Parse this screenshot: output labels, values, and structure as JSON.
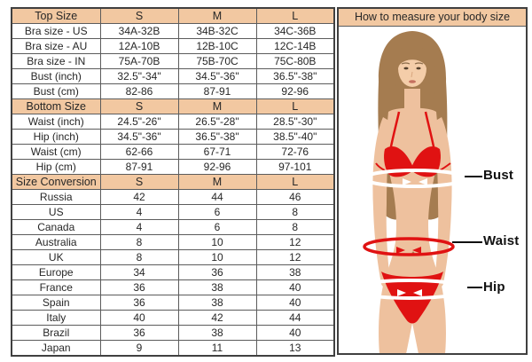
{
  "colors": {
    "header_bg": "#f2c8a1",
    "border": "#5c5c5c",
    "border_dark": "#404040",
    "text": "#272727",
    "bikini_red": "#e01212",
    "skin": "#eec19e",
    "skin_light": "#f4cda9",
    "hair": "#a57c50"
  },
  "size_table": {
    "sections": [
      {
        "header": {
          "label": "Top Size",
          "cols": [
            "S",
            "M",
            "L"
          ]
        },
        "rows": [
          {
            "label": "Bra size - US",
            "values": [
              "34A-32B",
              "34B-32C",
              "34C-36B"
            ]
          },
          {
            "label": "Bra size - AU",
            "values": [
              "12A-10B",
              "12B-10C",
              "12C-14B"
            ]
          },
          {
            "label": "Bra size - IN",
            "values": [
              "75A-70B",
              "75B-70C",
              "75C-80B"
            ]
          },
          {
            "label": "Bust (inch)",
            "values": [
              "32.5\"-34\"",
              "34.5\"-36\"",
              "36.5\"-38\""
            ]
          },
          {
            "label": "Bust (cm)",
            "values": [
              "82-86",
              "87-91",
              "92-96"
            ]
          }
        ]
      },
      {
        "header": {
          "label": "Bottom Size",
          "cols": [
            "S",
            "M",
            "L"
          ]
        },
        "rows": [
          {
            "label": "Waist (inch)",
            "values": [
              "24.5\"-26\"",
              "26.5\"-28\"",
              "28.5\"-30\""
            ]
          },
          {
            "label": "Hip (inch)",
            "values": [
              "34.5\"-36\"",
              "36.5\"-38\"",
              "38.5\"-40\""
            ]
          },
          {
            "label": "Waist (cm)",
            "values": [
              "62-66",
              "67-71",
              "72-76"
            ]
          },
          {
            "label": "Hip (cm)",
            "values": [
              "87-91",
              "92-96",
              "97-101"
            ]
          }
        ]
      },
      {
        "header": {
          "label": "Size Conversion",
          "cols": [
            "S",
            "M",
            "L"
          ]
        },
        "rows": [
          {
            "label": "Russia",
            "values": [
              "42",
              "44",
              "46"
            ]
          },
          {
            "label": "US",
            "values": [
              "4",
              "6",
              "8"
            ]
          },
          {
            "label": "Canada",
            "values": [
              "4",
              "6",
              "8"
            ]
          },
          {
            "label": "Australia",
            "values": [
              "8",
              "10",
              "12"
            ]
          },
          {
            "label": "UK",
            "values": [
              "8",
              "10",
              "12"
            ]
          },
          {
            "label": "Europe",
            "values": [
              "34",
              "36",
              "38"
            ]
          },
          {
            "label": "France",
            "values": [
              "36",
              "38",
              "40"
            ]
          },
          {
            "label": "Spain",
            "values": [
              "36",
              "38",
              "40"
            ]
          },
          {
            "label": "Italy",
            "values": [
              "40",
              "42",
              "44"
            ]
          },
          {
            "label": "Brazil",
            "values": [
              "36",
              "38",
              "40"
            ]
          },
          {
            "label": "Japan",
            "values": [
              "9",
              "11",
              "13"
            ]
          }
        ]
      }
    ]
  },
  "measure_panel": {
    "title": "How to measure your body size",
    "labels": {
      "bust": "Bust",
      "waist": "Waist",
      "hip": "Hip"
    }
  }
}
